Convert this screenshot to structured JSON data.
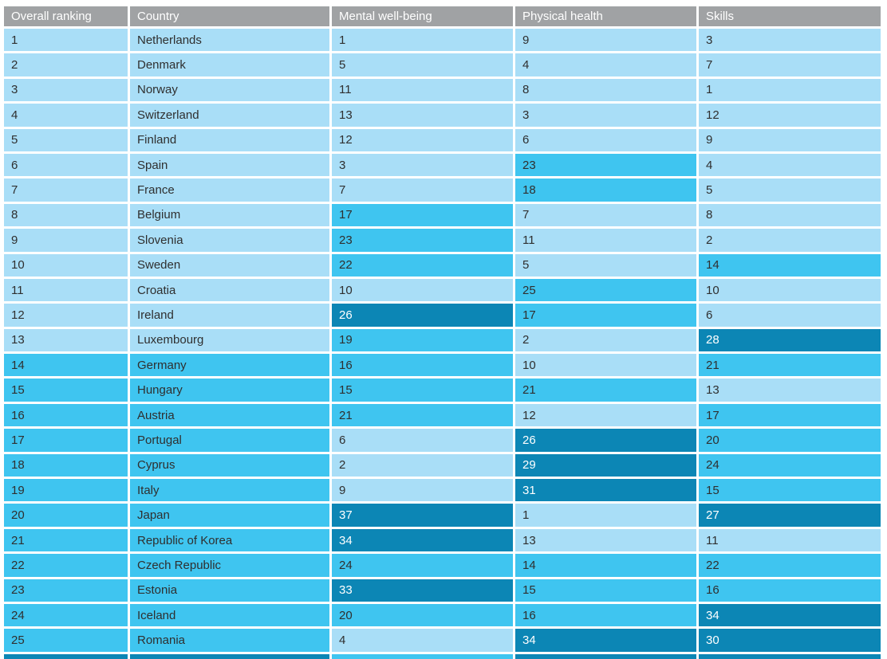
{
  "chart_data": {
    "type": "table",
    "columns": [
      {
        "key": "rank",
        "label": "Overall ranking"
      },
      {
        "key": "country",
        "label": "Country"
      },
      {
        "key": "mental",
        "label": "Mental well-being"
      },
      {
        "key": "physical",
        "label": "Physical health"
      },
      {
        "key": "skills",
        "label": "Skills"
      }
    ],
    "rows": [
      {
        "rank": 1,
        "country": "Netherlands",
        "mental": 1,
        "physical": 9,
        "skills": 3
      },
      {
        "rank": 2,
        "country": "Denmark",
        "mental": 5,
        "physical": 4,
        "skills": 7
      },
      {
        "rank": 3,
        "country": "Norway",
        "mental": 11,
        "physical": 8,
        "skills": 1
      },
      {
        "rank": 4,
        "country": "Switzerland",
        "mental": 13,
        "physical": 3,
        "skills": 12
      },
      {
        "rank": 5,
        "country": "Finland",
        "mental": 12,
        "physical": 6,
        "skills": 9
      },
      {
        "rank": 6,
        "country": "Spain",
        "mental": 3,
        "physical": 23,
        "skills": 4
      },
      {
        "rank": 7,
        "country": "France",
        "mental": 7,
        "physical": 18,
        "skills": 5
      },
      {
        "rank": 8,
        "country": "Belgium",
        "mental": 17,
        "physical": 7,
        "skills": 8
      },
      {
        "rank": 9,
        "country": "Slovenia",
        "mental": 23,
        "physical": 11,
        "skills": 2
      },
      {
        "rank": 10,
        "country": "Sweden",
        "mental": 22,
        "physical": 5,
        "skills": 14
      },
      {
        "rank": 11,
        "country": "Croatia",
        "mental": 10,
        "physical": 25,
        "skills": 10
      },
      {
        "rank": 12,
        "country": "Ireland",
        "mental": 26,
        "physical": 17,
        "skills": 6
      },
      {
        "rank": 13,
        "country": "Luxembourg",
        "mental": 19,
        "physical": 2,
        "skills": 28
      },
      {
        "rank": 14,
        "country": "Germany",
        "mental": 16,
        "physical": 10,
        "skills": 21
      },
      {
        "rank": 15,
        "country": "Hungary",
        "mental": 15,
        "physical": 21,
        "skills": 13
      },
      {
        "rank": 16,
        "country": "Austria",
        "mental": 21,
        "physical": 12,
        "skills": 17
      },
      {
        "rank": 17,
        "country": "Portugal",
        "mental": 6,
        "physical": 26,
        "skills": 20
      },
      {
        "rank": 18,
        "country": "Cyprus",
        "mental": 2,
        "physical": 29,
        "skills": 24
      },
      {
        "rank": 19,
        "country": "Italy",
        "mental": 9,
        "physical": 31,
        "skills": 15
      },
      {
        "rank": 20,
        "country": "Japan",
        "mental": 37,
        "physical": 1,
        "skills": 27
      },
      {
        "rank": 21,
        "country": "Republic of Korea",
        "mental": 34,
        "physical": 13,
        "skills": 11
      },
      {
        "rank": 22,
        "country": "Czech Republic",
        "mental": 24,
        "physical": 14,
        "skills": 22
      },
      {
        "rank": 23,
        "country": "Estonia",
        "mental": 33,
        "physical": 15,
        "skills": 16
      },
      {
        "rank": 24,
        "country": "Iceland",
        "mental": 20,
        "physical": 16,
        "skills": 34
      },
      {
        "rank": 25,
        "country": "Romania",
        "mental": 4,
        "physical": 34,
        "skills": 30
      }
    ],
    "shade_rules": {
      "light_max": 13,
      "medium_max": 25,
      "legend": {
        "light": "rank 1-13",
        "medium": "rank 14-25",
        "dark": "rank 26 and below"
      }
    },
    "partial_row_shades": {
      "rank": "dark",
      "country": "dark",
      "mental": "medium",
      "physical": "dark",
      "skills": "dark"
    },
    "colors": {
      "page_bg": "#ffffff",
      "header_bg": "#a0a2a4",
      "header_text": "#ffffff",
      "light": "#a9def7",
      "medium": "#3fc5f0",
      "dark": "#0c86b5",
      "text_dark": "#2f2f2f",
      "text_on_dark": "#ffffff"
    },
    "layout": {
      "grid": false,
      "legend_position": "none"
    }
  }
}
